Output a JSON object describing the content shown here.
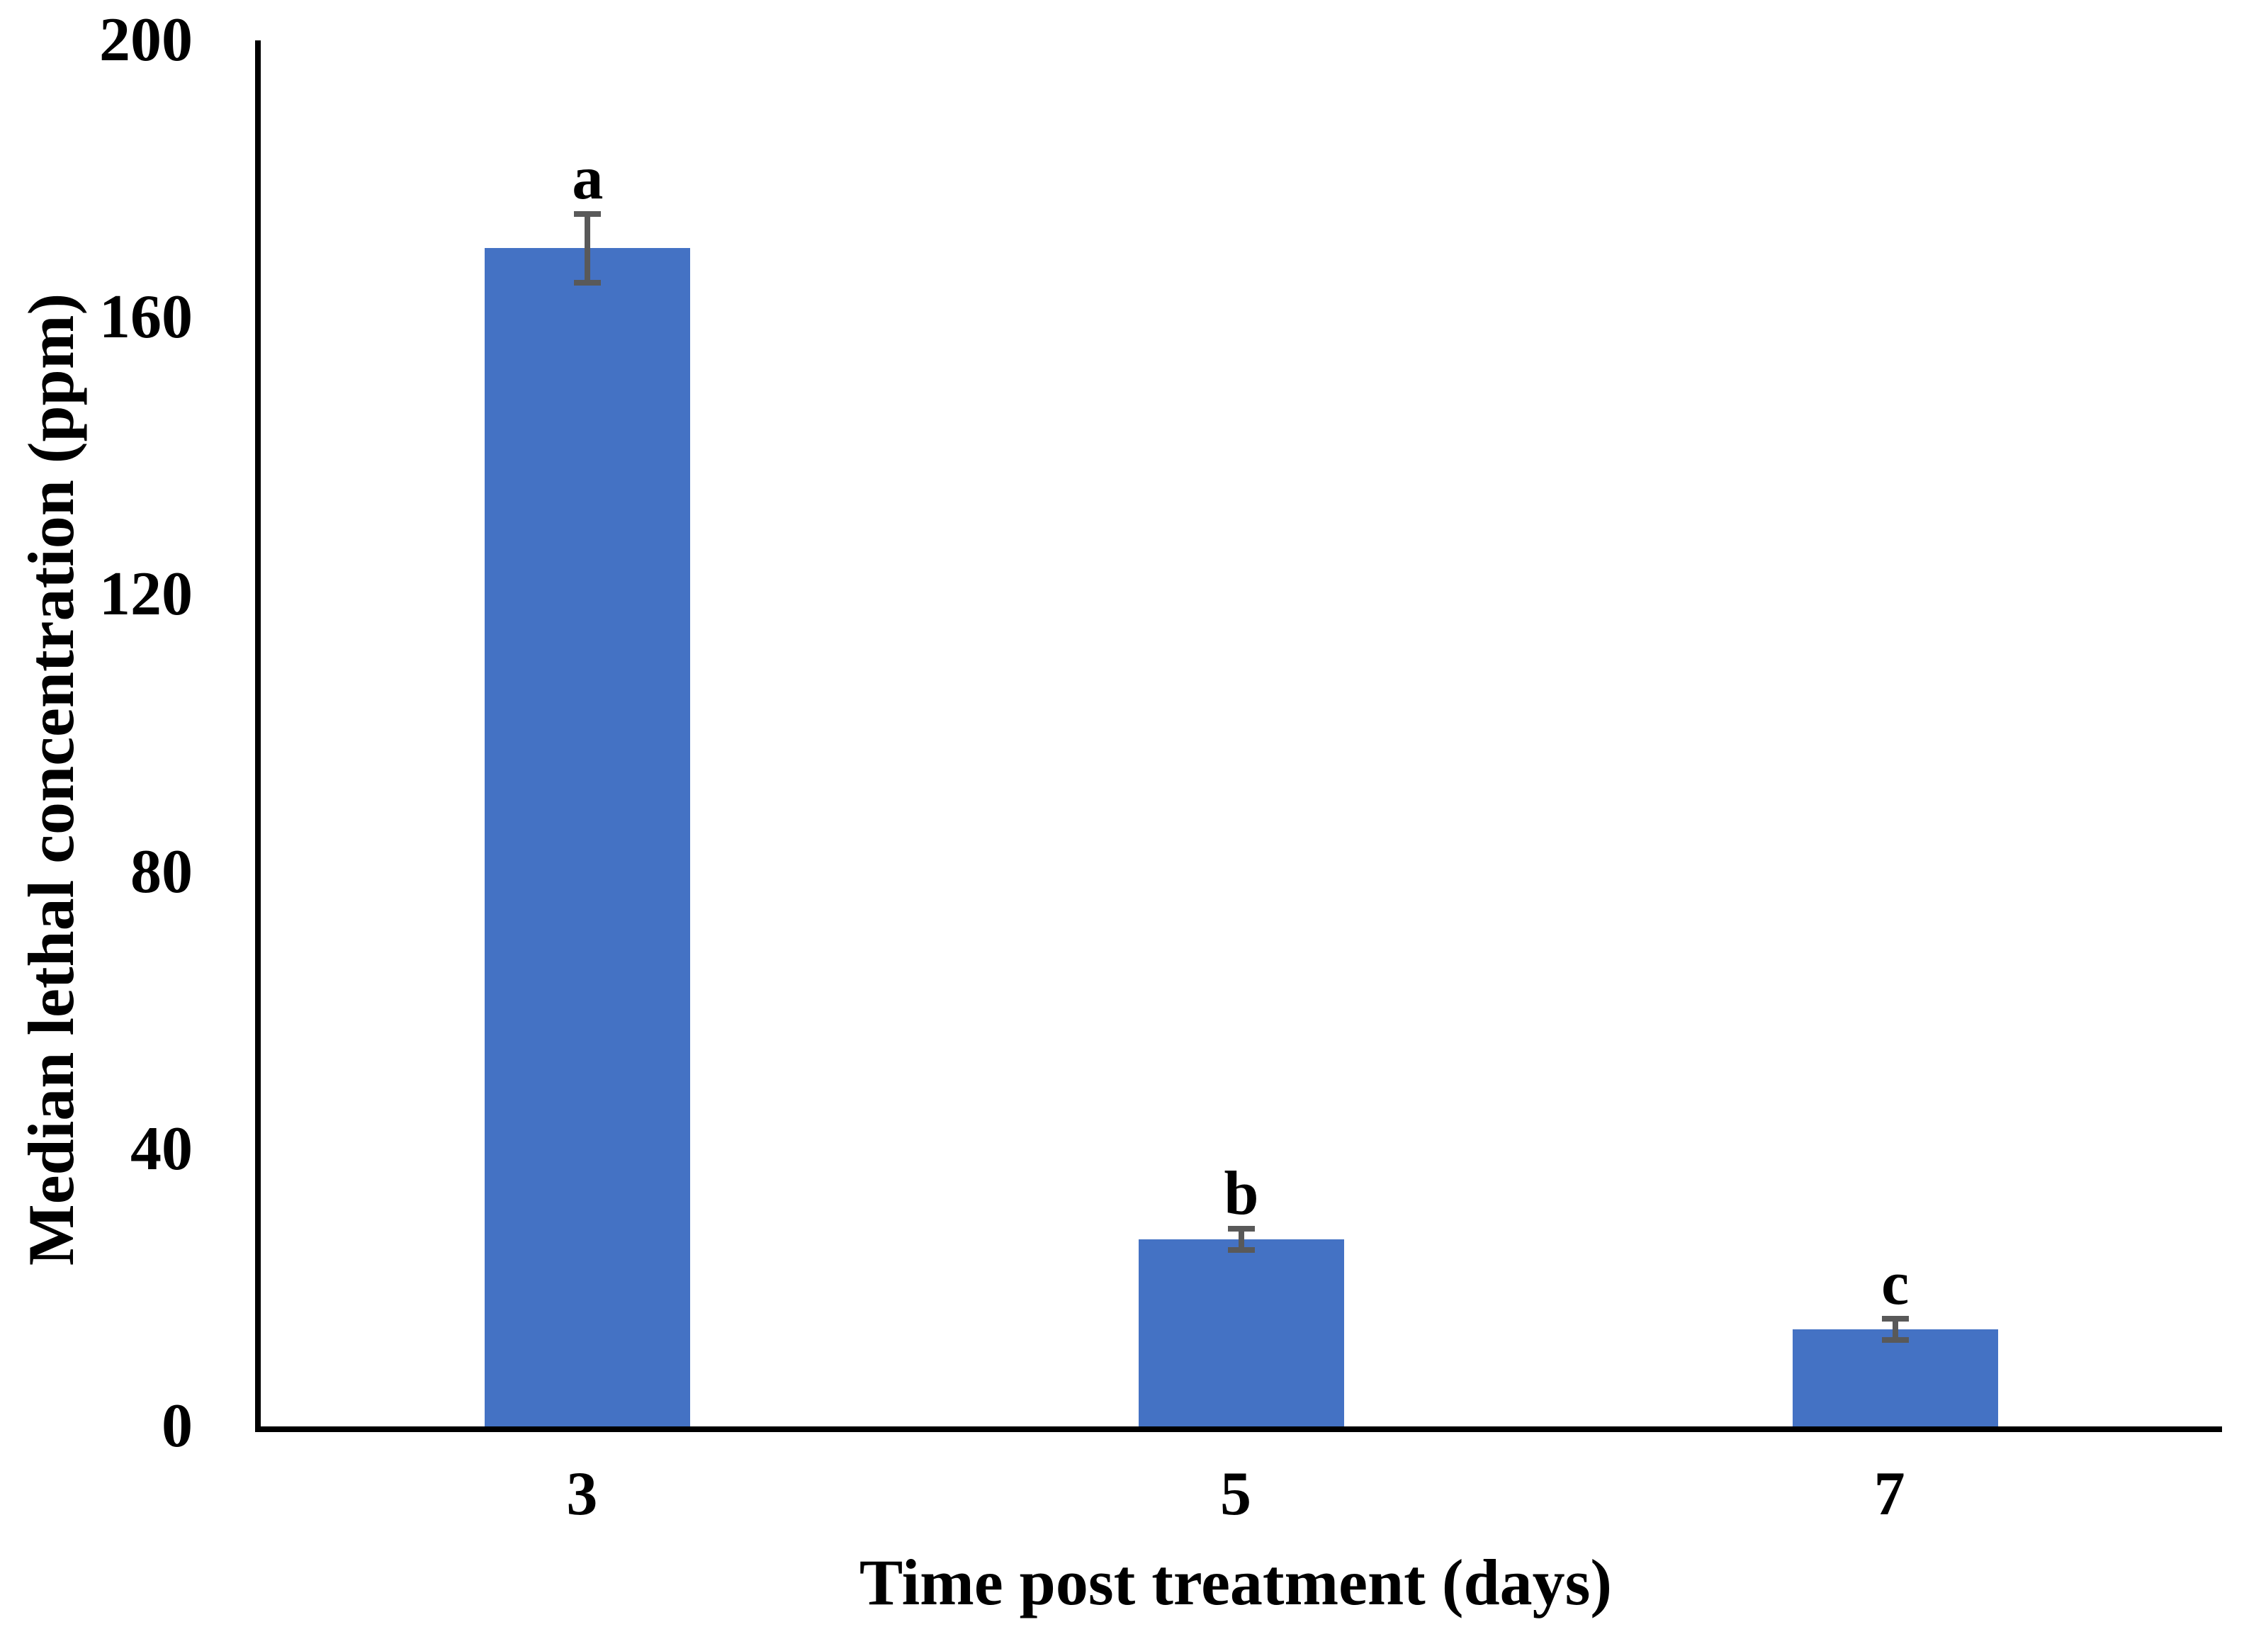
{
  "chart_data": {
    "type": "bar",
    "categories": [
      "3",
      "5",
      "7"
    ],
    "values": [
      170,
      27,
      14
    ],
    "errors": [
      5,
      1.5,
      1.5
    ],
    "bar_labels": [
      "a",
      "b",
      "c"
    ],
    "title": "",
    "xlabel": "Time post treatment (days)",
    "ylabel": "Median lethal concentration (ppm)",
    "ylim": [
      0,
      200
    ],
    "yticks": [
      0,
      40,
      80,
      120,
      160,
      200
    ],
    "grid": false,
    "legend": "none",
    "bar_color": "#4472C4",
    "error_color": "#595959",
    "axis_color": "#000000",
    "text_color": "#000000",
    "background_color": "#FFFFFF"
  }
}
